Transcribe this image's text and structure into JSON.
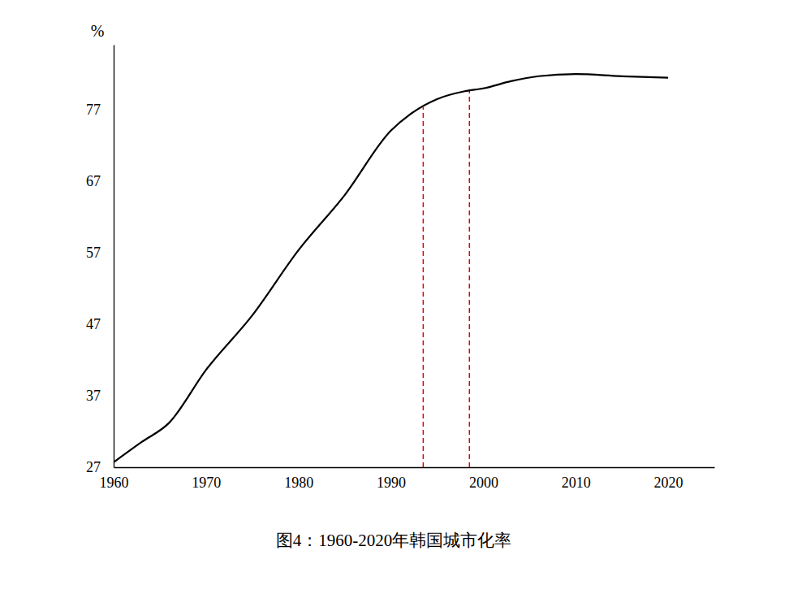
{
  "chart_data": {
    "type": "line",
    "title": "图4：1960-2020年韩国城市化率",
    "ylabel": "%",
    "x": [
      1960,
      1963,
      1966,
      1970,
      1975,
      1980,
      1985,
      1990,
      1992,
      1995,
      1998,
      2000,
      2003,
      2006,
      2010,
      2015,
      2020
    ],
    "series": [
      {
        "color": "#000000",
        "line_style": "solid",
        "values": [
          27.7,
          30.5,
          33.2,
          40.6,
          48.2,
          57.3,
          65.0,
          74.0,
          76.2,
          78.4,
          79.5,
          79.9,
          80.9,
          81.6,
          81.9,
          81.6,
          81.4
        ]
      }
    ],
    "xlim": [
      1960,
      2025
    ],
    "xticks": [
      1960,
      1970,
      1980,
      1990,
      2000,
      2010,
      2020
    ],
    "ylim": [
      27,
      86
    ],
    "yticks": [
      27,
      37,
      47,
      57,
      67,
      77
    ],
    "grid": false,
    "vlines": [
      {
        "x": 1993.5,
        "color": "#e00000",
        "line_style": "dashed"
      },
      {
        "x": 1998.5,
        "color": "#e00000",
        "line_style": "dashed"
      }
    ]
  }
}
